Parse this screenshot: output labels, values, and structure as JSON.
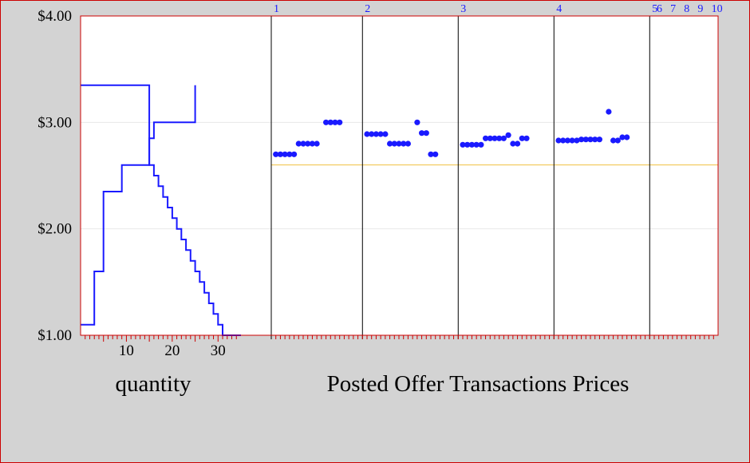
{
  "colors": {
    "background": "#d3d3d3",
    "plot_background": "#ffffff",
    "frame": "#cc0000",
    "curve": "#1a1aff",
    "points": "#1a1aff",
    "equilibrium_line": "#f0c040",
    "period_divider": "#000000"
  },
  "chart_data": [
    {
      "type": "line",
      "title": "",
      "xlabel": "quantity",
      "ylabel": "",
      "ylim": [
        1.0,
        4.0
      ],
      "y_ticks": [
        "$1.00",
        "$2.00",
        "$3.00",
        "$4.00"
      ],
      "x_ticks": [
        "10",
        "20",
        "30"
      ],
      "xlim": [
        0,
        35
      ],
      "series": [
        {
          "role": "supply",
          "x": [
            0,
            3,
            3,
            5,
            5,
            9,
            9,
            15,
            15,
            16,
            16,
            18,
            18,
            25,
            25
          ],
          "y": [
            1.1,
            1.1,
            1.6,
            1.6,
            2.35,
            2.35,
            2.6,
            2.6,
            2.85,
            2.85,
            3.0,
            3.0,
            3.0,
            3.0,
            3.35
          ]
        },
        {
          "role": "demand",
          "x": [
            0,
            15,
            15,
            16,
            16,
            17,
            17,
            18,
            18,
            19,
            19,
            20,
            20,
            21,
            21,
            22,
            22,
            23,
            23,
            24,
            24,
            25,
            25,
            26,
            26,
            27,
            27,
            28,
            28,
            29,
            29,
            30,
            30,
            31,
            31,
            35
          ],
          "y": [
            3.35,
            3.35,
            2.6,
            2.6,
            2.5,
            2.5,
            2.4,
            2.4,
            2.3,
            2.3,
            2.2,
            2.2,
            2.1,
            2.1,
            2.0,
            2.0,
            1.9,
            1.9,
            1.8,
            1.8,
            1.7,
            1.7,
            1.6,
            1.6,
            1.5,
            1.5,
            1.4,
            1.4,
            1.3,
            1.3,
            1.2,
            1.2,
            1.1,
            1.1,
            1.0,
            1.0
          ]
        }
      ]
    },
    {
      "type": "scatter",
      "title": "Posted Offer Transactions Prices",
      "ylim": [
        1.0,
        4.0
      ],
      "periods": [
        "1",
        "2",
        "3",
        "4",
        "5",
        "6",
        "7",
        "8",
        "9",
        "10"
      ],
      "equilibrium_price": 2.6,
      "xlim": [
        0,
        98
      ],
      "period_boundaries": [
        0,
        20,
        41,
        62,
        83,
        84,
        87,
        90,
        93,
        96
      ],
      "grid_lines": [
        3.0,
        2.0
      ],
      "points": [
        {
          "x": 1,
          "y": 2.7
        },
        {
          "x": 2,
          "y": 2.7
        },
        {
          "x": 3,
          "y": 2.7
        },
        {
          "x": 4,
          "y": 2.7
        },
        {
          "x": 5,
          "y": 2.7
        },
        {
          "x": 6,
          "y": 2.8
        },
        {
          "x": 7,
          "y": 2.8
        },
        {
          "x": 8,
          "y": 2.8
        },
        {
          "x": 9,
          "y": 2.8
        },
        {
          "x": 10,
          "y": 2.8
        },
        {
          "x": 12,
          "y": 3.0
        },
        {
          "x": 13,
          "y": 3.0
        },
        {
          "x": 14,
          "y": 3.0
        },
        {
          "x": 15,
          "y": 3.0
        },
        {
          "x": 21,
          "y": 2.89
        },
        {
          "x": 22,
          "y": 2.89
        },
        {
          "x": 23,
          "y": 2.89
        },
        {
          "x": 24,
          "y": 2.89
        },
        {
          "x": 25,
          "y": 2.89
        },
        {
          "x": 26,
          "y": 2.8
        },
        {
          "x": 27,
          "y": 2.8
        },
        {
          "x": 28,
          "y": 2.8
        },
        {
          "x": 29,
          "y": 2.8
        },
        {
          "x": 30,
          "y": 2.8
        },
        {
          "x": 32,
          "y": 3.0
        },
        {
          "x": 33,
          "y": 2.9
        },
        {
          "x": 34,
          "y": 2.9
        },
        {
          "x": 35,
          "y": 2.7
        },
        {
          "x": 36,
          "y": 2.7
        },
        {
          "x": 42,
          "y": 2.79
        },
        {
          "x": 43,
          "y": 2.79
        },
        {
          "x": 44,
          "y": 2.79
        },
        {
          "x": 45,
          "y": 2.79
        },
        {
          "x": 46,
          "y": 2.79
        },
        {
          "x": 47,
          "y": 2.85
        },
        {
          "x": 48,
          "y": 2.85
        },
        {
          "x": 49,
          "y": 2.85
        },
        {
          "x": 50,
          "y": 2.85
        },
        {
          "x": 51,
          "y": 2.85
        },
        {
          "x": 52,
          "y": 2.88
        },
        {
          "x": 53,
          "y": 2.8
        },
        {
          "x": 54,
          "y": 2.8
        },
        {
          "x": 55,
          "y": 2.85
        },
        {
          "x": 56,
          "y": 2.85
        },
        {
          "x": 63,
          "y": 2.83
        },
        {
          "x": 64,
          "y": 2.83
        },
        {
          "x": 65,
          "y": 2.83
        },
        {
          "x": 66,
          "y": 2.83
        },
        {
          "x": 67,
          "y": 2.83
        },
        {
          "x": 68,
          "y": 2.84
        },
        {
          "x": 69,
          "y": 2.84
        },
        {
          "x": 70,
          "y": 2.84
        },
        {
          "x": 71,
          "y": 2.84
        },
        {
          "x": 72,
          "y": 2.84
        },
        {
          "x": 74,
          "y": 3.1
        },
        {
          "x": 75,
          "y": 2.83
        },
        {
          "x": 76,
          "y": 2.83
        },
        {
          "x": 77,
          "y": 2.86
        },
        {
          "x": 78,
          "y": 2.86
        }
      ]
    }
  ]
}
